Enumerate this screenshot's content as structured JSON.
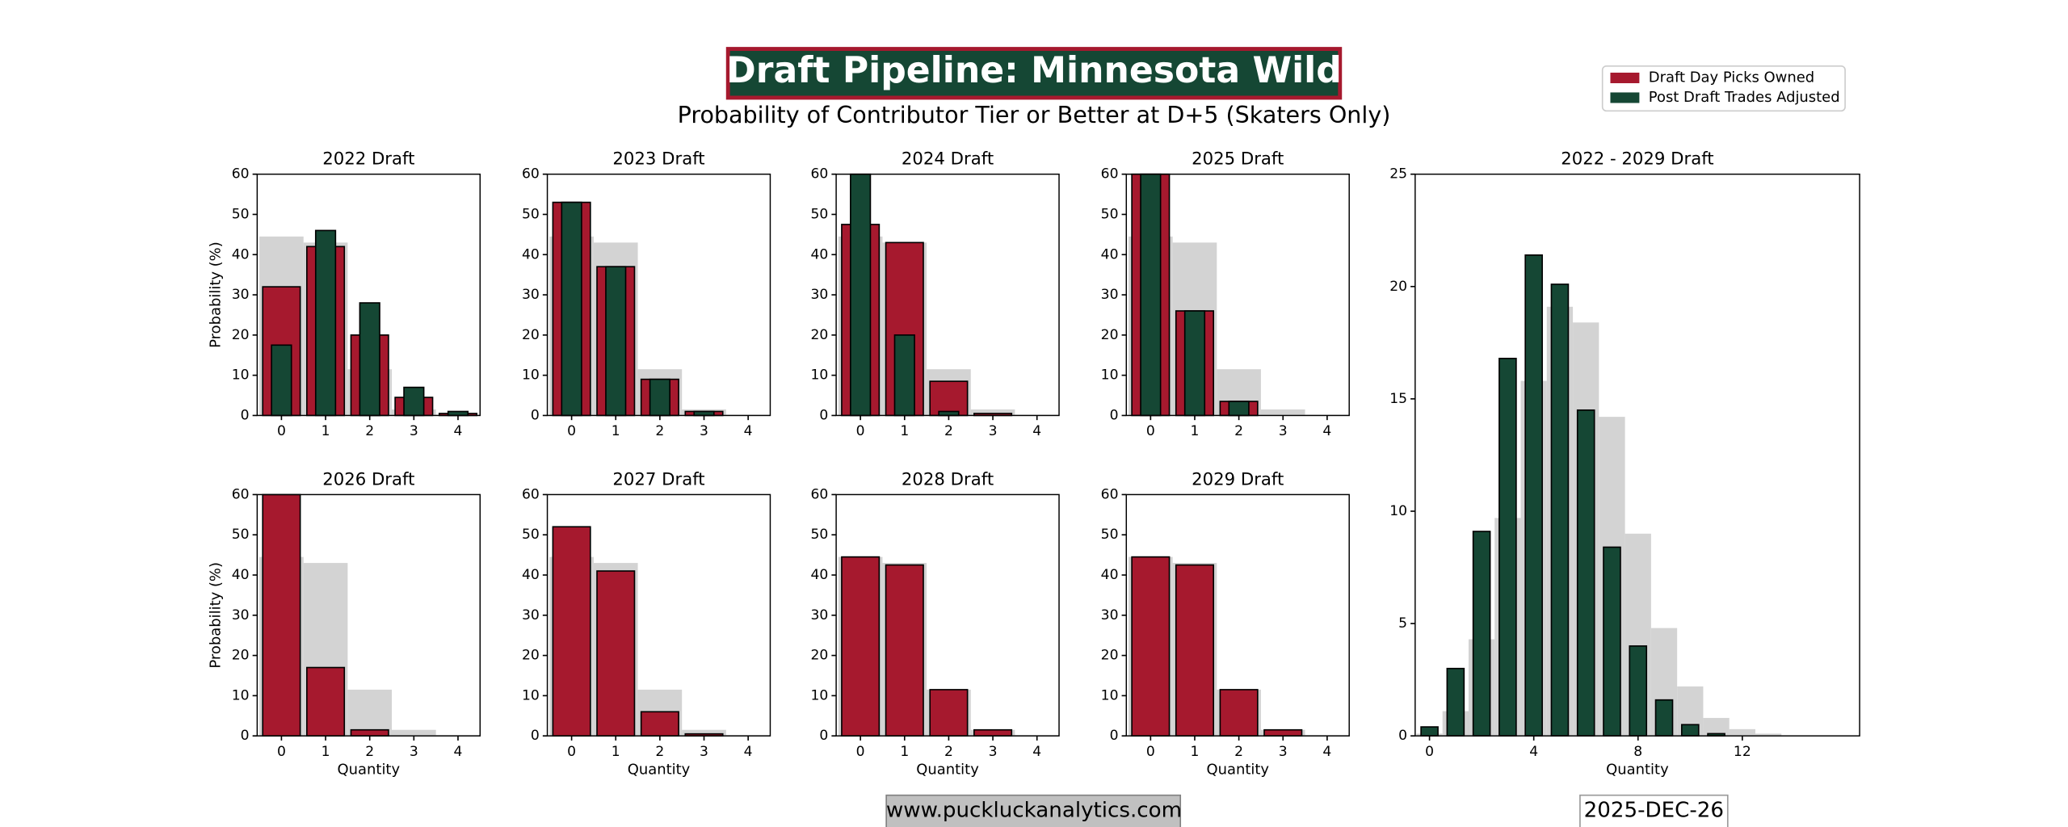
{
  "title": "Draft Pipeline: Minnesota Wild",
  "subtitle": "Probability of Contributor Tier or Better at D+5 (Skaters Only)",
  "footer_left": "www.puckluckanalytics.com",
  "footer_right": "2025-DEC-26",
  "chart_data": [
    {
      "type": "bar",
      "title": "2022 Draft",
      "ylabel": "Probability (%)",
      "x": [
        0,
        1,
        2,
        3,
        4
      ],
      "xlim": [
        -0.55,
        4.5
      ],
      "xticks": [
        0,
        1,
        2,
        3,
        4
      ],
      "ylim": [
        0,
        60
      ],
      "yticks": [
        0,
        10,
        20,
        30,
        40,
        50,
        60
      ],
      "series": [
        {
          "color": "#d3d3d3",
          "values": [
            44.5,
            43,
            11.5,
            1.5,
            0.2
          ]
        },
        {
          "name": "Draft Day Picks Owned",
          "color": "#a6192e",
          "values": [
            32,
            42,
            20,
            4.5,
            0.5
          ]
        },
        {
          "name": "Post Draft Trades Adjusted",
          "color": "#154734",
          "values": [
            17.5,
            46,
            28,
            7,
            1
          ]
        }
      ]
    },
    {
      "type": "bar",
      "title": "2023 Draft",
      "x": [
        0,
        1,
        2,
        3,
        4
      ],
      "xlim": [
        -0.55,
        4.5
      ],
      "xticks": [
        0,
        1,
        2,
        3,
        4
      ],
      "ylim": [
        0,
        60
      ],
      "yticks": [
        0,
        10,
        20,
        30,
        40,
        50,
        60
      ],
      "series": [
        {
          "color": "#d3d3d3",
          "values": [
            44.5,
            43,
            11.5,
            1.5,
            0.2
          ]
        },
        {
          "name": "Draft Day Picks Owned",
          "color": "#a6192e",
          "values": [
            53,
            37,
            9,
            1,
            0
          ]
        },
        {
          "name": "Post Draft Trades Adjusted",
          "color": "#154734",
          "values": [
            53,
            37,
            9,
            1,
            0
          ]
        }
      ]
    },
    {
      "type": "bar",
      "title": "2024 Draft",
      "x": [
        0,
        1,
        2,
        3,
        4
      ],
      "xlim": [
        -0.55,
        4.5
      ],
      "xticks": [
        0,
        1,
        2,
        3,
        4
      ],
      "ylim": [
        0,
        60
      ],
      "yticks": [
        0,
        10,
        20,
        30,
        40,
        50,
        60
      ],
      "series": [
        {
          "color": "#d3d3d3",
          "values": [
            44.5,
            43,
            11.5,
            1.5,
            0.2
          ]
        },
        {
          "name": "Draft Day Picks Owned",
          "color": "#a6192e",
          "values": [
            47.5,
            43,
            8.5,
            0.5,
            0
          ]
        },
        {
          "name": "Post Draft Trades Adjusted",
          "color": "#154734",
          "values": [
            60,
            20,
            1,
            0,
            0
          ]
        }
      ]
    },
    {
      "type": "bar",
      "title": "2025 Draft",
      "x": [
        0,
        1,
        2,
        3,
        4
      ],
      "xlim": [
        -0.55,
        4.5
      ],
      "xticks": [
        0,
        1,
        2,
        3,
        4
      ],
      "ylim": [
        0,
        60
      ],
      "yticks": [
        0,
        10,
        20,
        30,
        40,
        50,
        60
      ],
      "series": [
        {
          "color": "#d3d3d3",
          "values": [
            44.5,
            43,
            11.5,
            1.5,
            0.2
          ]
        },
        {
          "name": "Draft Day Picks Owned",
          "color": "#a6192e",
          "values": [
            60,
            26,
            3.5,
            0,
            0
          ]
        },
        {
          "name": "Post Draft Trades Adjusted",
          "color": "#154734",
          "values": [
            60,
            26,
            3.5,
            0,
            0
          ]
        }
      ]
    },
    {
      "type": "bar",
      "title": "2026 Draft",
      "ylabel": "Probability (%)",
      "xlabel": "Quantity",
      "x": [
        0,
        1,
        2,
        3,
        4
      ],
      "xlim": [
        -0.55,
        4.5
      ],
      "xticks": [
        0,
        1,
        2,
        3,
        4
      ],
      "ylim": [
        0,
        60
      ],
      "yticks": [
        0,
        10,
        20,
        30,
        40,
        50,
        60
      ],
      "series": [
        {
          "color": "#d3d3d3",
          "values": [
            44.5,
            43,
            11.5,
            1.5,
            0.2
          ]
        },
        {
          "name": "Draft Day Picks Owned",
          "color": "#a6192e",
          "values": [
            60,
            17,
            1.5,
            0,
            0
          ]
        }
      ]
    },
    {
      "type": "bar",
      "title": "2027 Draft",
      "xlabel": "Quantity",
      "x": [
        0,
        1,
        2,
        3,
        4
      ],
      "xlim": [
        -0.55,
        4.5
      ],
      "xticks": [
        0,
        1,
        2,
        3,
        4
      ],
      "ylim": [
        0,
        60
      ],
      "yticks": [
        0,
        10,
        20,
        30,
        40,
        50,
        60
      ],
      "series": [
        {
          "color": "#d3d3d3",
          "values": [
            44.5,
            43,
            11.5,
            1.5,
            0.2
          ]
        },
        {
          "name": "Draft Day Picks Owned",
          "color": "#a6192e",
          "values": [
            52,
            41,
            6,
            0.5,
            0
          ]
        }
      ]
    },
    {
      "type": "bar",
      "title": "2028 Draft",
      "xlabel": "Quantity",
      "x": [
        0,
        1,
        2,
        3,
        4
      ],
      "xlim": [
        -0.55,
        4.5
      ],
      "xticks": [
        0,
        1,
        2,
        3,
        4
      ],
      "ylim": [
        0,
        60
      ],
      "yticks": [
        0,
        10,
        20,
        30,
        40,
        50,
        60
      ],
      "series": [
        {
          "color": "#d3d3d3",
          "values": [
            44.5,
            43,
            11.5,
            1.5,
            0.2
          ]
        },
        {
          "name": "Draft Day Picks Owned",
          "color": "#a6192e",
          "values": [
            44.5,
            42.5,
            11.5,
            1.5,
            0
          ]
        }
      ]
    },
    {
      "type": "bar",
      "title": "2029 Draft",
      "xlabel": "Quantity",
      "x": [
        0,
        1,
        2,
        3,
        4
      ],
      "xlim": [
        -0.55,
        4.5
      ],
      "xticks": [
        0,
        1,
        2,
        3,
        4
      ],
      "ylim": [
        0,
        60
      ],
      "yticks": [
        0,
        10,
        20,
        30,
        40,
        50,
        60
      ],
      "series": [
        {
          "color": "#d3d3d3",
          "values": [
            44.5,
            43,
            11.5,
            1.5,
            0.2
          ]
        },
        {
          "name": "Draft Day Picks Owned",
          "color": "#a6192e",
          "values": [
            44.5,
            42.5,
            11.5,
            1.5,
            0
          ]
        }
      ]
    },
    {
      "type": "bar",
      "title": "2022 - 2029 Draft",
      "xlabel": "Quantity",
      "x": [
        0,
        1,
        2,
        3,
        4,
        5,
        6,
        7,
        8,
        9,
        10,
        11,
        12,
        13,
        14
      ],
      "xlim": [
        -0.55,
        16.5
      ],
      "xticks": [
        0,
        4,
        8,
        12
      ],
      "ylim": [
        0,
        25
      ],
      "yticks": [
        0,
        5,
        10,
        15,
        20,
        25
      ],
      "series": [
        {
          "color": "#d3d3d3",
          "values": [
            0.1,
            1.1,
            4.3,
            9.7,
            15.8,
            19.1,
            18.4,
            14.2,
            9,
            4.8,
            2.2,
            0.8,
            0.3,
            0.1,
            0
          ]
        },
        {
          "name": "Post Draft Trades Adjusted",
          "color": "#154734",
          "values": [
            0.4,
            3,
            9.1,
            16.8,
            21.4,
            20.1,
            14.5,
            8.4,
            4,
            1.6,
            0.5,
            0.1,
            0,
            0,
            0
          ]
        }
      ]
    }
  ]
}
